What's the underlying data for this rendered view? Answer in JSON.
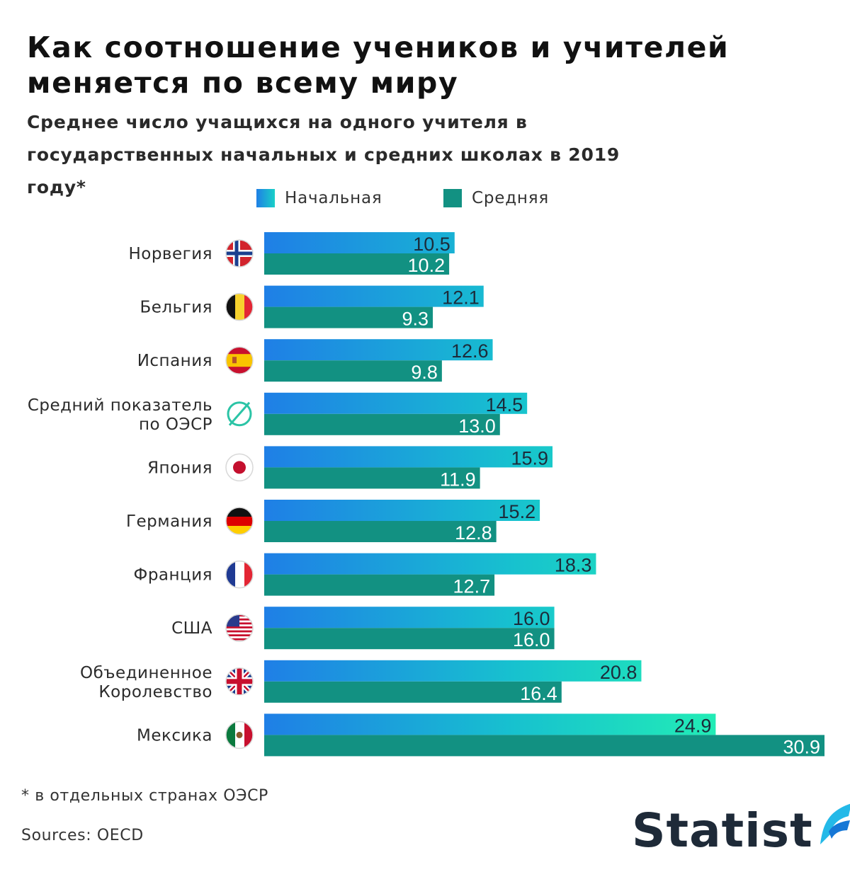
{
  "title": "Как соотношение учеников и учителей\nменяется по всему миру",
  "subtitle": "Среднее число учащихся на одного учителя в государственных начальных и средних школах в 2019 году*",
  "footnote": "* в отдельных странах ОЭСР",
  "source": "Sources: OECD",
  "brand": "Statist",
  "colors": {
    "primary_start": "#1f7fe6",
    "primary_end": "#19d0c8",
    "secondary": "#129182",
    "value_text": "#1c2b3a"
  },
  "chart_data": {
    "type": "bar",
    "orientation": "horizontal",
    "categories": [
      [
        "Норвегия"
      ],
      [
        "Бельгия"
      ],
      [
        "Испания"
      ],
      [
        "Средний показатель",
        "по ОЭСР"
      ],
      [
        "Япония"
      ],
      [
        "Германия"
      ],
      [
        "Франция"
      ],
      [
        "США"
      ],
      [
        "Объединенное",
        "Королевство"
      ],
      [
        "Мексика"
      ]
    ],
    "category_icons": [
      "norway-flag-icon",
      "belgium-flag-icon",
      "spain-flag-icon",
      "oecd-icon",
      "japan-flag-icon",
      "germany-flag-icon",
      "france-flag-icon",
      "usa-flag-icon",
      "uk-flag-icon",
      "mexico-flag-icon"
    ],
    "series": [
      {
        "name": "Начальная",
        "values": [
          10.5,
          12.1,
          12.6,
          14.5,
          15.9,
          15.2,
          18.3,
          16.0,
          20.8,
          24.9
        ]
      },
      {
        "name": "Средняя",
        "values": [
          10.2,
          9.3,
          9.8,
          13.0,
          11.9,
          12.8,
          12.7,
          16.0,
          16.4,
          30.9
        ]
      }
    ],
    "xlim": [
      0,
      30.9
    ],
    "value_format": "one-decimal",
    "legend_position": "top",
    "grid": false
  }
}
